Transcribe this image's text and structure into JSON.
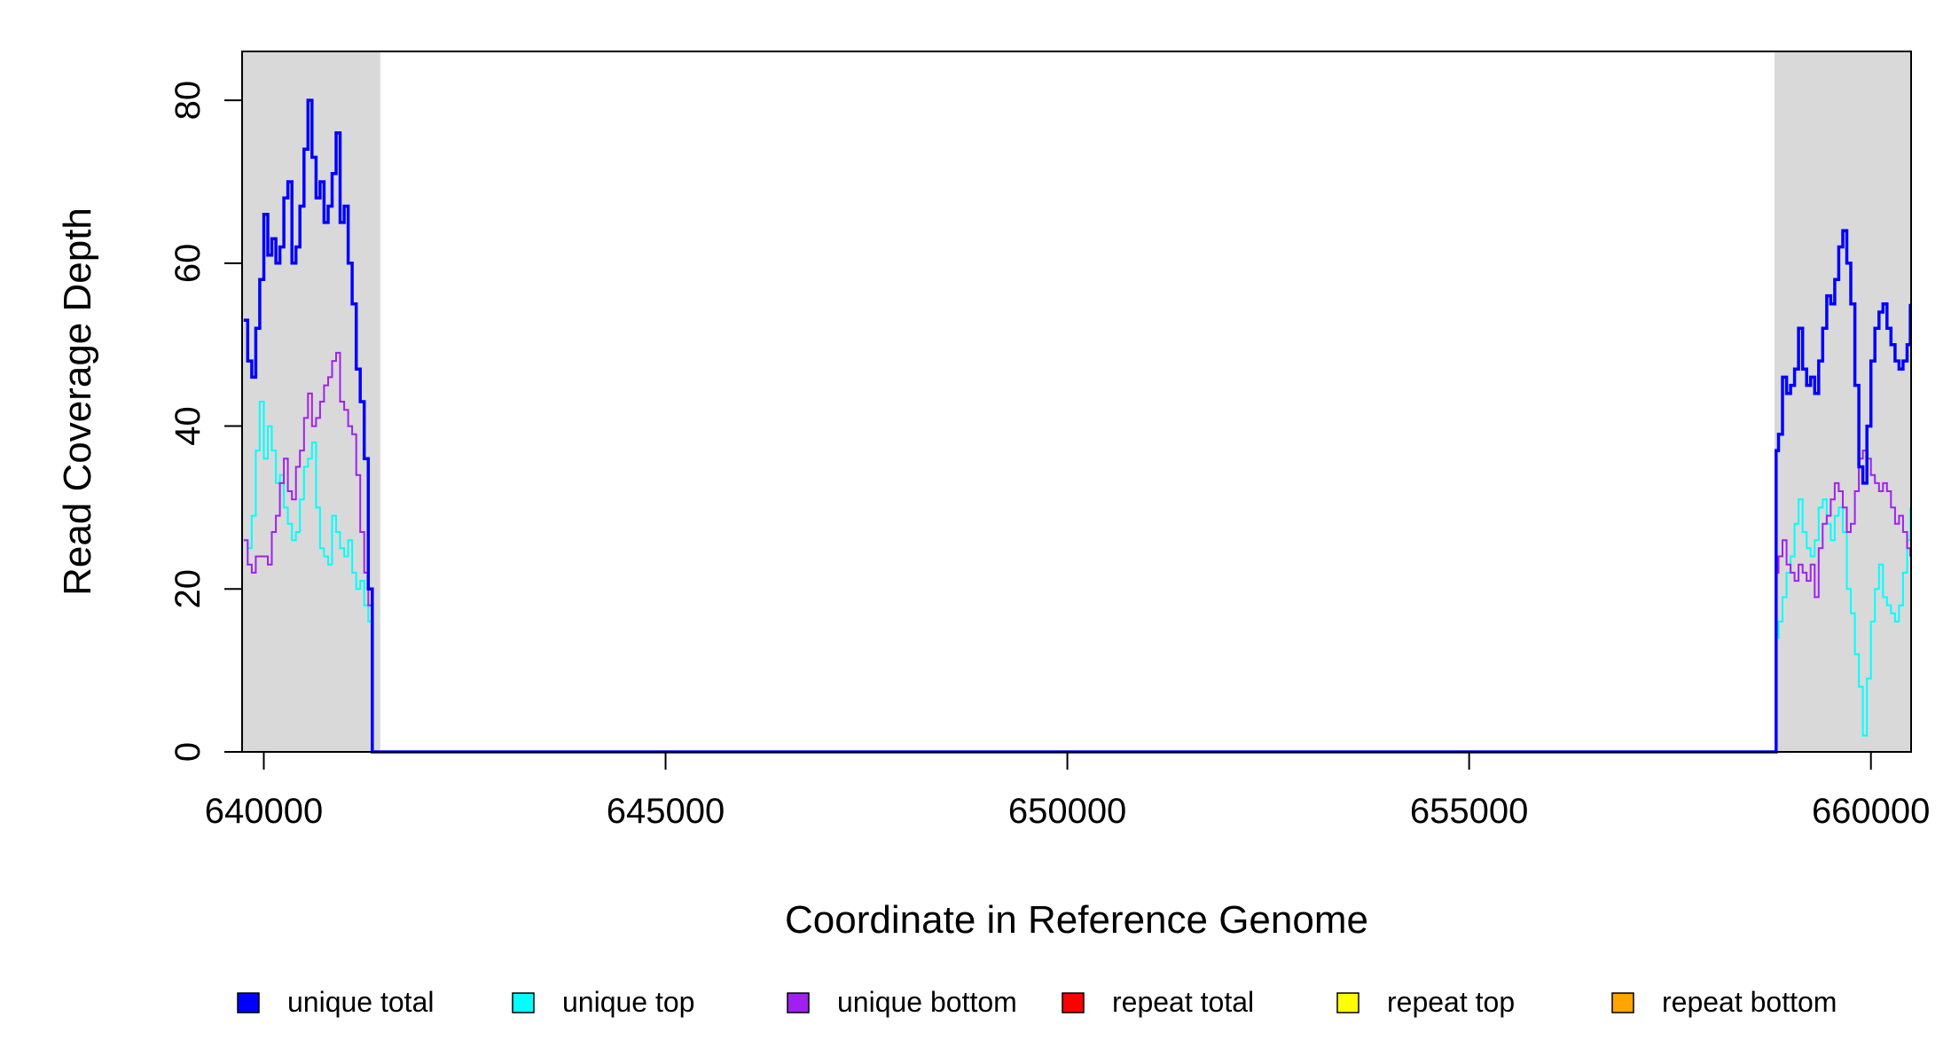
{
  "chart_data": {
    "type": "line",
    "title": "",
    "xlabel": "Coordinate in Reference Genome",
    "ylabel": "Read Coverage Depth",
    "xlim": [
      639730,
      660500
    ],
    "ylim": [
      0,
      86
    ],
    "x_ticks": [
      640000,
      645000,
      650000,
      655000,
      660000
    ],
    "y_ticks": [
      0,
      20,
      40,
      60,
      80
    ],
    "shaded_regions": [
      {
        "x0": 639730,
        "x1": 641450,
        "color": "#d9d9d9"
      },
      {
        "x0": 658800,
        "x1": 660500,
        "color": "#d9d9d9"
      }
    ],
    "legend_position": "bottom",
    "series": [
      {
        "name": "unique total",
        "color": "#0000ff",
        "x": [
          639750,
          639800,
          639850,
          639900,
          639950,
          640000,
          640050,
          640100,
          640150,
          640200,
          640250,
          640300,
          640350,
          640400,
          640450,
          640500,
          640550,
          640600,
          640650,
          640700,
          640750,
          640800,
          640850,
          640900,
          640950,
          641000,
          641050,
          641100,
          641150,
          641200,
          641250,
          641300,
          641350,
          641400,
          641450,
          641480,
          641500,
          641550,
          658750,
          658800,
          658820,
          658850,
          658900,
          658950,
          659000,
          659050,
          659100,
          659150,
          659200,
          659250,
          659300,
          659350,
          659400,
          659450,
          659500,
          659550,
          659600,
          659650,
          659700,
          659750,
          659800,
          659850,
          659900,
          659950,
          660000,
          660050,
          660100,
          660150,
          660200,
          660250,
          660300,
          660350,
          660400,
          660450,
          660490
        ],
        "y": [
          53,
          48,
          46,
          52,
          58,
          66,
          61,
          63,
          60,
          62,
          68,
          70,
          60,
          62,
          67,
          74,
          80,
          73,
          68,
          70,
          65,
          67,
          71,
          76,
          65,
          67,
          60,
          55,
          47,
          43,
          36,
          20,
          0,
          0,
          0,
          0,
          0,
          0,
          0,
          0,
          37,
          39,
          46,
          44,
          45,
          47,
          52,
          47,
          45,
          46,
          44,
          48,
          52,
          56,
          55,
          58,
          62,
          64,
          60,
          55,
          45,
          35,
          33,
          40,
          48,
          52,
          54,
          55,
          52,
          50,
          48,
          47,
          48,
          50,
          55
        ]
      },
      {
        "name": "unique top",
        "color": "#00ffff",
        "x": [
          639750,
          639800,
          639850,
          639900,
          639950,
          640000,
          640050,
          640100,
          640150,
          640200,
          640250,
          640300,
          640350,
          640400,
          640450,
          640500,
          640550,
          640600,
          640650,
          640700,
          640750,
          640800,
          640850,
          640900,
          640950,
          641000,
          641050,
          641100,
          641150,
          641200,
          641250,
          641300,
          641350,
          641400,
          641450,
          641480,
          641500,
          641550,
          658750,
          658800,
          658820,
          658850,
          658900,
          658950,
          659000,
          659050,
          659100,
          659150,
          659200,
          659250,
          659300,
          659350,
          659400,
          659450,
          659500,
          659550,
          659600,
          659650,
          659700,
          659750,
          659800,
          659850,
          659900,
          659950,
          660000,
          660050,
          660100,
          660150,
          660200,
          660250,
          660300,
          660350,
          660400,
          660450,
          660490
        ],
        "y": [
          26,
          25,
          29,
          37,
          43,
          36,
          40,
          37,
          33,
          34,
          30,
          28,
          26,
          27,
          31,
          35,
          36,
          38,
          30,
          25,
          24,
          23,
          29,
          27,
          25,
          24,
          26,
          22,
          20,
          21,
          18,
          16,
          0,
          0,
          0,
          0,
          0,
          0,
          0,
          0,
          14,
          16,
          19,
          22,
          24,
          28,
          31,
          27,
          25,
          24,
          26,
          30,
          31,
          28,
          26,
          29,
          30,
          27,
          20,
          17,
          12,
          8,
          2,
          9,
          16,
          20,
          23,
          19,
          18,
          17,
          16,
          18,
          22,
          26,
          30
        ]
      },
      {
        "name": "unique bottom",
        "color": "#a020f0",
        "x": [
          639750,
          639800,
          639850,
          639900,
          639950,
          640000,
          640050,
          640100,
          640150,
          640200,
          640250,
          640300,
          640350,
          640400,
          640450,
          640500,
          640550,
          640600,
          640650,
          640700,
          640750,
          640800,
          640850,
          640900,
          640950,
          641000,
          641050,
          641100,
          641150,
          641200,
          641250,
          641300,
          641350,
          641400,
          641450,
          641480,
          641500,
          641550,
          658750,
          658800,
          658820,
          658850,
          658900,
          658950,
          659000,
          659050,
          659100,
          659150,
          659200,
          659250,
          659300,
          659350,
          659400,
          659450,
          659500,
          659550,
          659600,
          659650,
          659700,
          659750,
          659800,
          659850,
          659900,
          659950,
          660000,
          660050,
          660100,
          660150,
          660200,
          660250,
          660300,
          660350,
          660400,
          660450,
          660490
        ],
        "y": [
          26,
          23,
          22,
          24,
          24,
          24,
          23,
          27,
          29,
          33,
          36,
          32,
          31,
          35,
          37,
          41,
          44,
          40,
          41,
          43,
          45,
          46,
          48,
          49,
          43,
          42,
          40,
          39,
          34,
          27,
          22,
          18,
          0,
          0,
          0,
          0,
          0,
          0,
          0,
          0,
          22,
          24,
          26,
          23,
          22,
          21,
          23,
          22,
          21,
          23,
          19,
          25,
          28,
          29,
          31,
          33,
          32,
          30,
          27,
          28,
          32,
          36,
          37,
          36,
          34,
          33,
          32,
          33,
          32,
          30,
          28,
          29,
          27,
          25,
          24
        ]
      },
      {
        "name": "repeat total",
        "color": "#ff0000",
        "x": [
          639730,
          660500
        ],
        "y": [
          0,
          0
        ]
      },
      {
        "name": "repeat top",
        "color": "#ffff00",
        "x": [
          639730,
          660500
        ],
        "y": [
          0,
          0
        ]
      },
      {
        "name": "repeat bottom",
        "color": "#ffa500",
        "x": [
          639730,
          660500
        ],
        "y": [
          0,
          0
        ]
      }
    ]
  }
}
